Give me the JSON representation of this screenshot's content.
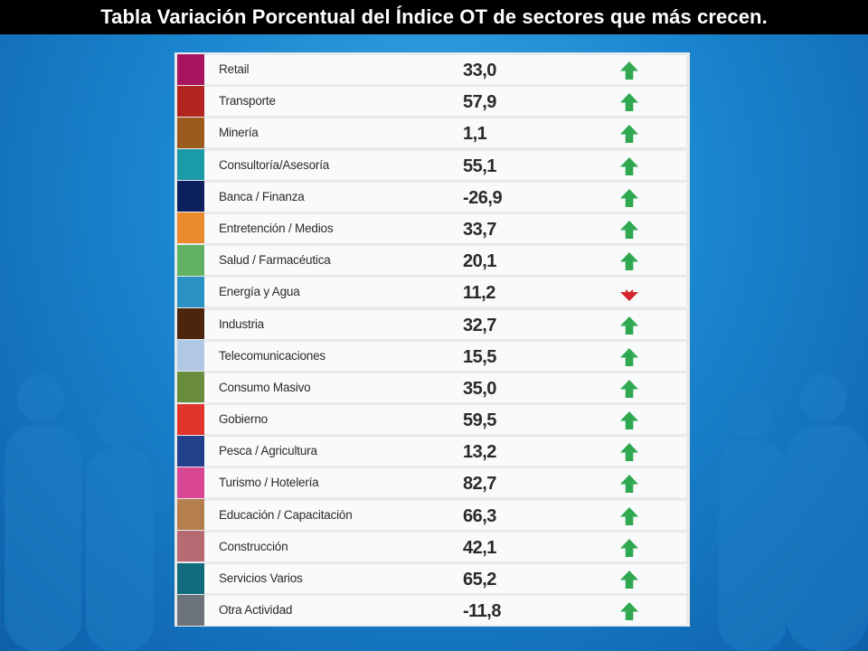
{
  "title": "Tabla Variación Porcentual del Índice OT de sectores que más crecen.",
  "chart_data": {
    "type": "table",
    "columns": [
      "color",
      "sector",
      "variacion_porcentual",
      "tendencia"
    ],
    "rows": [
      {
        "sector": "Retail",
        "value_text": "33,0",
        "value": 33.0,
        "color": "#a8155e",
        "trend": "up"
      },
      {
        "sector": "Transporte",
        "value_text": "57,9",
        "value": 57.9,
        "color": "#b3261f",
        "trend": "up"
      },
      {
        "sector": "Minería",
        "value_text": "1,1",
        "value": 1.1,
        "color": "#9a5b1c",
        "trend": "up"
      },
      {
        "sector": "Consultoría/Asesoría",
        "value_text": "55,1",
        "value": 55.1,
        "color": "#1b9aa8",
        "trend": "up"
      },
      {
        "sector": "Banca / Finanza",
        "value_text": "-26,9",
        "value": -26.9,
        "color": "#0d2160",
        "trend": "up"
      },
      {
        "sector": "Entretención / Medios",
        "value_text": "33,7",
        "value": 33.7,
        "color": "#ea8a2c",
        "trend": "up"
      },
      {
        "sector": "Salud / Farmacéutica",
        "value_text": "20,1",
        "value": 20.1,
        "color": "#62b062",
        "trend": "up"
      },
      {
        "sector": "Energía y Agua",
        "value_text": "11,2",
        "value": 11.2,
        "color": "#2b93c4",
        "trend": "down"
      },
      {
        "sector": "Industria",
        "value_text": "32,7",
        "value": 32.7,
        "color": "#4d250d",
        "trend": "up"
      },
      {
        "sector": "Telecomunicaciones",
        "value_text": "15,5",
        "value": 15.5,
        "color": "#b0c8e6",
        "trend": "up"
      },
      {
        "sector": "Consumo Masivo",
        "value_text": "35,0",
        "value": 35.0,
        "color": "#6a8c3e",
        "trend": "up"
      },
      {
        "sector": "Gobierno",
        "value_text": "59,5",
        "value": 59.5,
        "color": "#e0342c",
        "trend": "up"
      },
      {
        "sector": "Pesca / Agricultura",
        "value_text": "13,2",
        "value": 13.2,
        "color": "#213f8a",
        "trend": "up"
      },
      {
        "sector": "Turismo / Hotelería",
        "value_text": "82,7",
        "value": 82.7,
        "color": "#d84694",
        "trend": "up"
      },
      {
        "sector": "Educación / Capacitación",
        "value_text": "66,3",
        "value": 66.3,
        "color": "#b47e4e",
        "trend": "up"
      },
      {
        "sector": "Construcción",
        "value_text": "42,1",
        "value": 42.1,
        "color": "#b86a72",
        "trend": "up"
      },
      {
        "sector": "Servicios Varios",
        "value_text": "65,2",
        "value": 65.2,
        "color": "#126b7d",
        "trend": "up"
      },
      {
        "sector": "Otra Actividad",
        "value_text": "-11,8",
        "value": -11.8,
        "color": "#6b7279",
        "trend": "up"
      }
    ]
  },
  "colors": {
    "arrow_up": "#2fa84f",
    "arrow_down": "#d3252b",
    "title_bar_bg": "#000000",
    "title_text": "#ffffff"
  },
  "icons": {
    "up": "arrow-up-icon",
    "down": "arrow-down-icon"
  }
}
